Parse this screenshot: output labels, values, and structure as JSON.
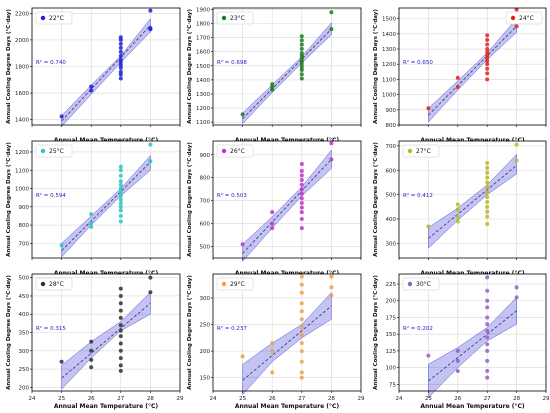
{
  "figure": {
    "x_label": "Annual Mean Temperature (°C)",
    "y_label": "Annual Cooling Degree Days (°C·day)"
  },
  "chart_data": [
    {
      "type": "scatter",
      "legend": "22°C",
      "r2": "R² = 0.740",
      "color": "#1f1fd8",
      "xlim": [
        24,
        29
      ],
      "xticks": [
        24,
        25,
        26,
        27,
        28,
        29
      ],
      "show_x_ticklabels": false,
      "ylim": [
        1360,
        2240
      ],
      "yticks": [
        1400,
        1600,
        1800,
        2000,
        2200
      ],
      "grid": true,
      "legend_position": "top-left",
      "fit": [
        [
          25,
          1390
        ],
        [
          28,
          2110
        ]
      ],
      "band": [
        [
          25,
          1350,
          1430
        ],
        [
          26,
          1590,
          1660
        ],
        [
          27,
          1830,
          1880
        ],
        [
          28,
          2060,
          2160
        ]
      ],
      "points": [
        [
          25,
          1425
        ],
        [
          26,
          1620
        ],
        [
          26,
          1650
        ],
        [
          27,
          1710
        ],
        [
          27,
          1740
        ],
        [
          27,
          1760
        ],
        [
          27,
          1790
        ],
        [
          27,
          1810
        ],
        [
          27,
          1830
        ],
        [
          27,
          1850
        ],
        [
          27,
          1880
        ],
        [
          27,
          1910
        ],
        [
          27,
          1940
        ],
        [
          27,
          1970
        ],
        [
          27,
          2000
        ],
        [
          27,
          2020
        ],
        [
          28,
          2080
        ],
        [
          28,
          2090
        ],
        [
          28,
          2220
        ]
      ]
    },
    {
      "type": "scatter",
      "legend": "23°C",
      "r2": "R² = 0.698",
      "color": "#1a7a1a",
      "xlim": [
        24,
        29
      ],
      "xticks": [
        24,
        25,
        26,
        27,
        28,
        29
      ],
      "show_x_ticklabels": false,
      "ylim": [
        1080,
        1910
      ],
      "yticks": [
        1100,
        1200,
        1300,
        1400,
        1500,
        1600,
        1700,
        1800,
        1900
      ],
      "grid": true,
      "legend_position": "top-left",
      "fit": [
        [
          25,
          1125
        ],
        [
          28,
          1760
        ]
      ],
      "band": [
        [
          25,
          1090,
          1165
        ],
        [
          26,
          1310,
          1365
        ],
        [
          27,
          1520,
          1565
        ],
        [
          28,
          1720,
          1805
        ]
      ],
      "points": [
        [
          25,
          1155
        ],
        [
          26,
          1330
        ],
        [
          26,
          1350
        ],
        [
          26,
          1370
        ],
        [
          27,
          1410
        ],
        [
          27,
          1440
        ],
        [
          27,
          1470
        ],
        [
          27,
          1490
        ],
        [
          27,
          1510
        ],
        [
          27,
          1530
        ],
        [
          27,
          1550
        ],
        [
          27,
          1570
        ],
        [
          27,
          1590
        ],
        [
          27,
          1620
        ],
        [
          27,
          1650
        ],
        [
          27,
          1680
        ],
        [
          27,
          1710
        ],
        [
          28,
          1760
        ],
        [
          28,
          1880
        ]
      ]
    },
    {
      "type": "scatter",
      "legend": "24°C",
      "r2": "R² = 0.650",
      "color": "#e02020",
      "xlim": [
        24,
        29
      ],
      "xticks": [
        24,
        25,
        26,
        27,
        28,
        29
      ],
      "show_x_ticklabels": false,
      "ylim": [
        800,
        1570
      ],
      "yticks": [
        800,
        900,
        1000,
        1100,
        1200,
        1300,
        1400,
        1500
      ],
      "grid": true,
      "legend_position": "top-right",
      "fit": [
        [
          25,
          865
        ],
        [
          28,
          1450
        ]
      ],
      "band": [
        [
          25,
          820,
          910
        ],
        [
          26,
          1030,
          1090
        ],
        [
          27,
          1230,
          1275
        ],
        [
          28,
          1410,
          1500
        ]
      ],
      "points": [
        [
          25,
          910
        ],
        [
          26,
          1050
        ],
        [
          26,
          1110
        ],
        [
          27,
          1100
        ],
        [
          27,
          1140
        ],
        [
          27,
          1170
        ],
        [
          27,
          1200
        ],
        [
          27,
          1220
        ],
        [
          27,
          1240
        ],
        [
          27,
          1260
        ],
        [
          27,
          1280
        ],
        [
          27,
          1300
        ],
        [
          27,
          1330
        ],
        [
          27,
          1360
        ],
        [
          27,
          1390
        ],
        [
          28,
          1450
        ],
        [
          28,
          1560
        ]
      ]
    },
    {
      "type": "scatter",
      "legend": "25°C",
      "r2": "R² = 0.594",
      "color": "#2cc4c4",
      "xlim": [
        24,
        29
      ],
      "xticks": [
        24,
        25,
        26,
        27,
        28,
        29
      ],
      "show_x_ticklabels": false,
      "ylim": [
        620,
        1260
      ],
      "yticks": [
        700,
        800,
        900,
        1000,
        1100,
        1200
      ],
      "grid": true,
      "legend_position": "top-left",
      "fit": [
        [
          25,
          660
        ],
        [
          28,
          1145
        ]
      ],
      "band": [
        [
          25,
          625,
          700
        ],
        [
          26,
          800,
          850
        ],
        [
          27,
          960,
          1000
        ],
        [
          28,
          1100,
          1180
        ]
      ],
      "points": [
        [
          25,
          690
        ],
        [
          26,
          790
        ],
        [
          26,
          810
        ],
        [
          26,
          860
        ],
        [
          27,
          820
        ],
        [
          27,
          850
        ],
        [
          27,
          880
        ],
        [
          27,
          900
        ],
        [
          27,
          920
        ],
        [
          27,
          940
        ],
        [
          27,
          960
        ],
        [
          27,
          980
        ],
        [
          27,
          1000
        ],
        [
          27,
          1020
        ],
        [
          27,
          1040
        ],
        [
          27,
          1070
        ],
        [
          27,
          1100
        ],
        [
          27,
          1120
        ],
        [
          28,
          1150
        ],
        [
          28,
          1240
        ]
      ]
    },
    {
      "type": "scatter",
      "legend": "26°C",
      "r2": "R² = 0.503",
      "color": "#c030c8",
      "xlim": [
        24,
        29
      ],
      "xticks": [
        24,
        25,
        26,
        27,
        28,
        29
      ],
      "show_x_ticklabels": false,
      "ylim": [
        450,
        960
      ],
      "yticks": [
        500,
        600,
        700,
        800,
        900
      ],
      "grid": true,
      "legend_position": "top-left",
      "fit": [
        [
          25,
          470
        ],
        [
          28,
          880
        ]
      ],
      "band": [
        [
          25,
          435,
          510
        ],
        [
          26,
          580,
          630
        ],
        [
          27,
          720,
          760
        ],
        [
          28,
          840,
          920
        ]
      ],
      "points": [
        [
          25,
          510
        ],
        [
          26,
          580
        ],
        [
          26,
          600
        ],
        [
          26,
          650
        ],
        [
          27,
          580
        ],
        [
          27,
          620
        ],
        [
          27,
          650
        ],
        [
          27,
          670
        ],
        [
          27,
          690
        ],
        [
          27,
          710
        ],
        [
          27,
          730
        ],
        [
          27,
          750
        ],
        [
          27,
          770
        ],
        [
          27,
          790
        ],
        [
          27,
          810
        ],
        [
          27,
          830
        ],
        [
          27,
          860
        ],
        [
          28,
          880
        ],
        [
          28,
          950
        ]
      ]
    },
    {
      "type": "scatter",
      "legend": "27°C",
      "r2": "R² = 0.412",
      "color": "#b8b820",
      "xlim": [
        24,
        29
      ],
      "xticks": [
        24,
        25,
        26,
        27,
        28,
        29
      ],
      "show_x_ticklabels": false,
      "ylim": [
        240,
        720
      ],
      "yticks": [
        300,
        400,
        500,
        600,
        700
      ],
      "grid": true,
      "legend_position": "top-left",
      "fit": [
        [
          25,
          320
        ],
        [
          28,
          620
        ]
      ],
      "band": [
        [
          25,
          280,
          365
        ],
        [
          26,
          395,
          445
        ],
        [
          27,
          500,
          540
        ],
        [
          28,
          585,
          665
        ]
      ],
      "points": [
        [
          25,
          370
        ],
        [
          26,
          390
        ],
        [
          26,
          410
        ],
        [
          26,
          440
        ],
        [
          26,
          460
        ],
        [
          27,
          380
        ],
        [
          27,
          410
        ],
        [
          27,
          430
        ],
        [
          27,
          450
        ],
        [
          27,
          470
        ],
        [
          27,
          490
        ],
        [
          27,
          510
        ],
        [
          27,
          530
        ],
        [
          27,
          550
        ],
        [
          27,
          570
        ],
        [
          27,
          590
        ],
        [
          27,
          610
        ],
        [
          27,
          630
        ],
        [
          28,
          640
        ],
        [
          28,
          705
        ]
      ]
    },
    {
      "type": "scatter",
      "legend": "28°C",
      "r2": "R² = 0.315",
      "color": "#303030",
      "xlim": [
        24,
        29
      ],
      "xticks": [
        24,
        25,
        26,
        27,
        28,
        29
      ],
      "show_x_ticklabels": true,
      "ylim": [
        190,
        510
      ],
      "yticks": [
        200,
        250,
        300,
        350,
        400,
        450,
        500
      ],
      "grid": true,
      "legend_position": "top-left",
      "fit": [
        [
          25,
          225
        ],
        [
          28,
          430
        ]
      ],
      "band": [
        [
          25,
          195,
          260
        ],
        [
          26,
          280,
          325
        ],
        [
          27,
          355,
          380
        ],
        [
          28,
          400,
          460
        ]
      ],
      "points": [
        [
          25,
          270
        ],
        [
          26,
          255
        ],
        [
          26,
          275
        ],
        [
          26,
          300
        ],
        [
          26,
          325
        ],
        [
          27,
          245
        ],
        [
          27,
          260
        ],
        [
          27,
          280
        ],
        [
          27,
          300
        ],
        [
          27,
          320
        ],
        [
          27,
          340
        ],
        [
          27,
          355
        ],
        [
          27,
          370
        ],
        [
          27,
          390
        ],
        [
          27,
          410
        ],
        [
          27,
          430
        ],
        [
          27,
          450
        ],
        [
          27,
          470
        ],
        [
          28,
          460
        ],
        [
          28,
          500
        ]
      ]
    },
    {
      "type": "scatter",
      "legend": "29°C",
      "r2": "R² = 0.237",
      "color": "#f0a040",
      "xlim": [
        24,
        29
      ],
      "xticks": [
        24,
        25,
        26,
        27,
        28,
        29
      ],
      "show_x_ticklabels": true,
      "ylim": [
        125,
        345
      ],
      "yticks": [
        150,
        200,
        250,
        300
      ],
      "grid": true,
      "legend_position": "top-left",
      "fit": [
        [
          25,
          145
        ],
        [
          28,
          285
        ]
      ],
      "band": [
        [
          25,
          118,
          175
        ],
        [
          26,
          180,
          215
        ],
        [
          27,
          225,
          250
        ],
        [
          28,
          260,
          310
        ]
      ],
      "points": [
        [
          25,
          190
        ],
        [
          26,
          160
        ],
        [
          26,
          200
        ],
        [
          26,
          215
        ],
        [
          27,
          150
        ],
        [
          27,
          160
        ],
        [
          27,
          180
        ],
        [
          27,
          200
        ],
        [
          27,
          215
        ],
        [
          27,
          230
        ],
        [
          27,
          245
        ],
        [
          27,
          260
        ],
        [
          27,
          275
        ],
        [
          27,
          290
        ],
        [
          27,
          310
        ],
        [
          27,
          325
        ],
        [
          27,
          340
        ],
        [
          28,
          305
        ],
        [
          28,
          320
        ],
        [
          28,
          340
        ]
      ]
    },
    {
      "type": "scatter",
      "legend": "30°C",
      "r2": "R² = 0.202",
      "color": "#9060c8",
      "xlim": [
        24,
        29
      ],
      "xticks": [
        24,
        25,
        26,
        27,
        28,
        29
      ],
      "show_x_ticklabels": true,
      "ylim": [
        65,
        240
      ],
      "yticks": [
        75,
        100,
        125,
        150,
        175,
        200,
        225
      ],
      "grid": true,
      "legend_position": "top-left",
      "fit": [
        [
          25,
          80
        ],
        [
          28,
          185
        ]
      ],
      "band": [
        [
          25,
          55,
          105
        ],
        [
          26,
          100,
          130
        ],
        [
          27,
          140,
          160
        ],
        [
          28,
          165,
          205
        ]
      ],
      "points": [
        [
          25,
          118
        ],
        [
          26,
          95
        ],
        [
          26,
          110
        ],
        [
          26,
          125
        ],
        [
          27,
          85
        ],
        [
          27,
          95
        ],
        [
          27,
          110
        ],
        [
          27,
          125
        ],
        [
          27,
          135
        ],
        [
          27,
          145
        ],
        [
          27,
          155
        ],
        [
          27,
          165
        ],
        [
          27,
          175
        ],
        [
          27,
          190
        ],
        [
          27,
          200
        ],
        [
          27,
          215
        ],
        [
          27,
          235
        ],
        [
          28,
          205
        ],
        [
          28,
          220
        ]
      ]
    }
  ]
}
